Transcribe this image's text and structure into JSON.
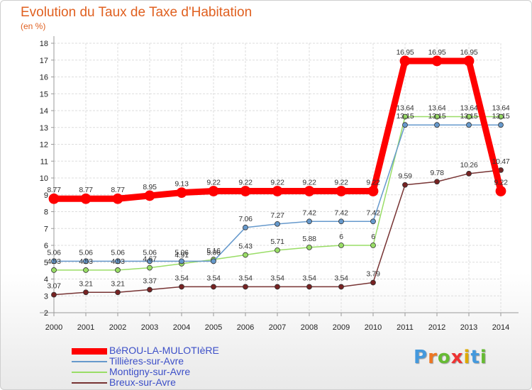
{
  "chart_data": {
    "type": "line",
    "title": "Evolution du Taux de Taxe d'Habitation",
    "subtitle": "(en %)",
    "x": [
      "2000",
      "2001",
      "2002",
      "2003",
      "2004",
      "2005",
      "2006",
      "2007",
      "2008",
      "2009",
      "2010",
      "2011",
      "2012",
      "2013",
      "2014"
    ],
    "ylim": [
      2,
      18
    ],
    "yticks": [
      2,
      3,
      4,
      5,
      6,
      7,
      8,
      9,
      10,
      11,
      12,
      13,
      14,
      15,
      16,
      17,
      18
    ],
    "grid": true,
    "legend_position": "bottom-left",
    "series": [
      {
        "name": "BéROU-LA-MULOTIèRE",
        "color": "#ff0000",
        "width": 9,
        "marker": 7,
        "values": [
          8.77,
          8.77,
          8.77,
          8.95,
          9.13,
          9.22,
          9.22,
          9.22,
          9.22,
          9.22,
          9.22,
          16.95,
          16.95,
          16.95,
          9.22
        ],
        "labels": [
          "8.77",
          "8.77",
          "8.77",
          "8.95",
          "9.13",
          "9.22",
          "9.22",
          "9.22",
          "9.22",
          "9.22",
          "9.22",
          "16.95",
          "16.95",
          "16.95",
          "9.22"
        ]
      },
      {
        "name": "Tillières-sur-Avre",
        "color": "#6699cc",
        "width": 1.5,
        "marker": 3.5,
        "values": [
          5.06,
          5.06,
          5.06,
          5.06,
          5.06,
          5.06,
          7.06,
          7.27,
          7.42,
          7.42,
          7.42,
          13.15,
          13.15,
          13.15,
          13.15
        ],
        "labels": [
          "5.06",
          "5.06",
          "5.06",
          "5.06",
          "5.06",
          "5.06",
          "7.06",
          "7.27",
          "7.42",
          "7.42",
          "7.42",
          "13.15",
          "13.15",
          "13.15",
          "13.15"
        ]
      },
      {
        "name": "Montigny-sur-Avre",
        "color": "#99dd66",
        "width": 1.5,
        "marker": 3.5,
        "values": [
          4.53,
          4.53,
          4.53,
          4.67,
          4.91,
          5.16,
          5.43,
          5.71,
          5.88,
          6,
          6,
          13.64,
          13.64,
          13.64,
          13.64
        ],
        "labels": [
          "4.53",
          "4.53",
          "4.53",
          "4.67",
          "4.91",
          "5.16",
          "5.43",
          "5.71",
          "5.88",
          "6",
          "6",
          "13.64",
          "13.64",
          "13.64",
          "13.64"
        ]
      },
      {
        "name": "Breux-sur-Avre",
        "color": "#773333",
        "width": 1.5,
        "marker": 3.5,
        "values": [
          3.07,
          3.21,
          3.21,
          3.37,
          3.54,
          3.54,
          3.54,
          3.54,
          3.54,
          3.54,
          3.79,
          9.59,
          9.78,
          10.26,
          10.47
        ],
        "labels": [
          "3.07",
          "3.21",
          "3.21",
          "3.37",
          "3.54",
          "3.54",
          "3.54",
          "3.54",
          "3.54",
          "3.54",
          "3.79",
          "9.59",
          "9.78",
          "10.26",
          "10.47"
        ]
      }
    ]
  },
  "brand": {
    "letters": [
      "P",
      "r",
      "o",
      "x",
      "i",
      "t",
      "i"
    ],
    "colors": [
      "#4499dd",
      "#ee7722",
      "#66bb33",
      "#ee3333",
      "#ddaa00",
      "#4499dd",
      "#66bb33"
    ]
  }
}
